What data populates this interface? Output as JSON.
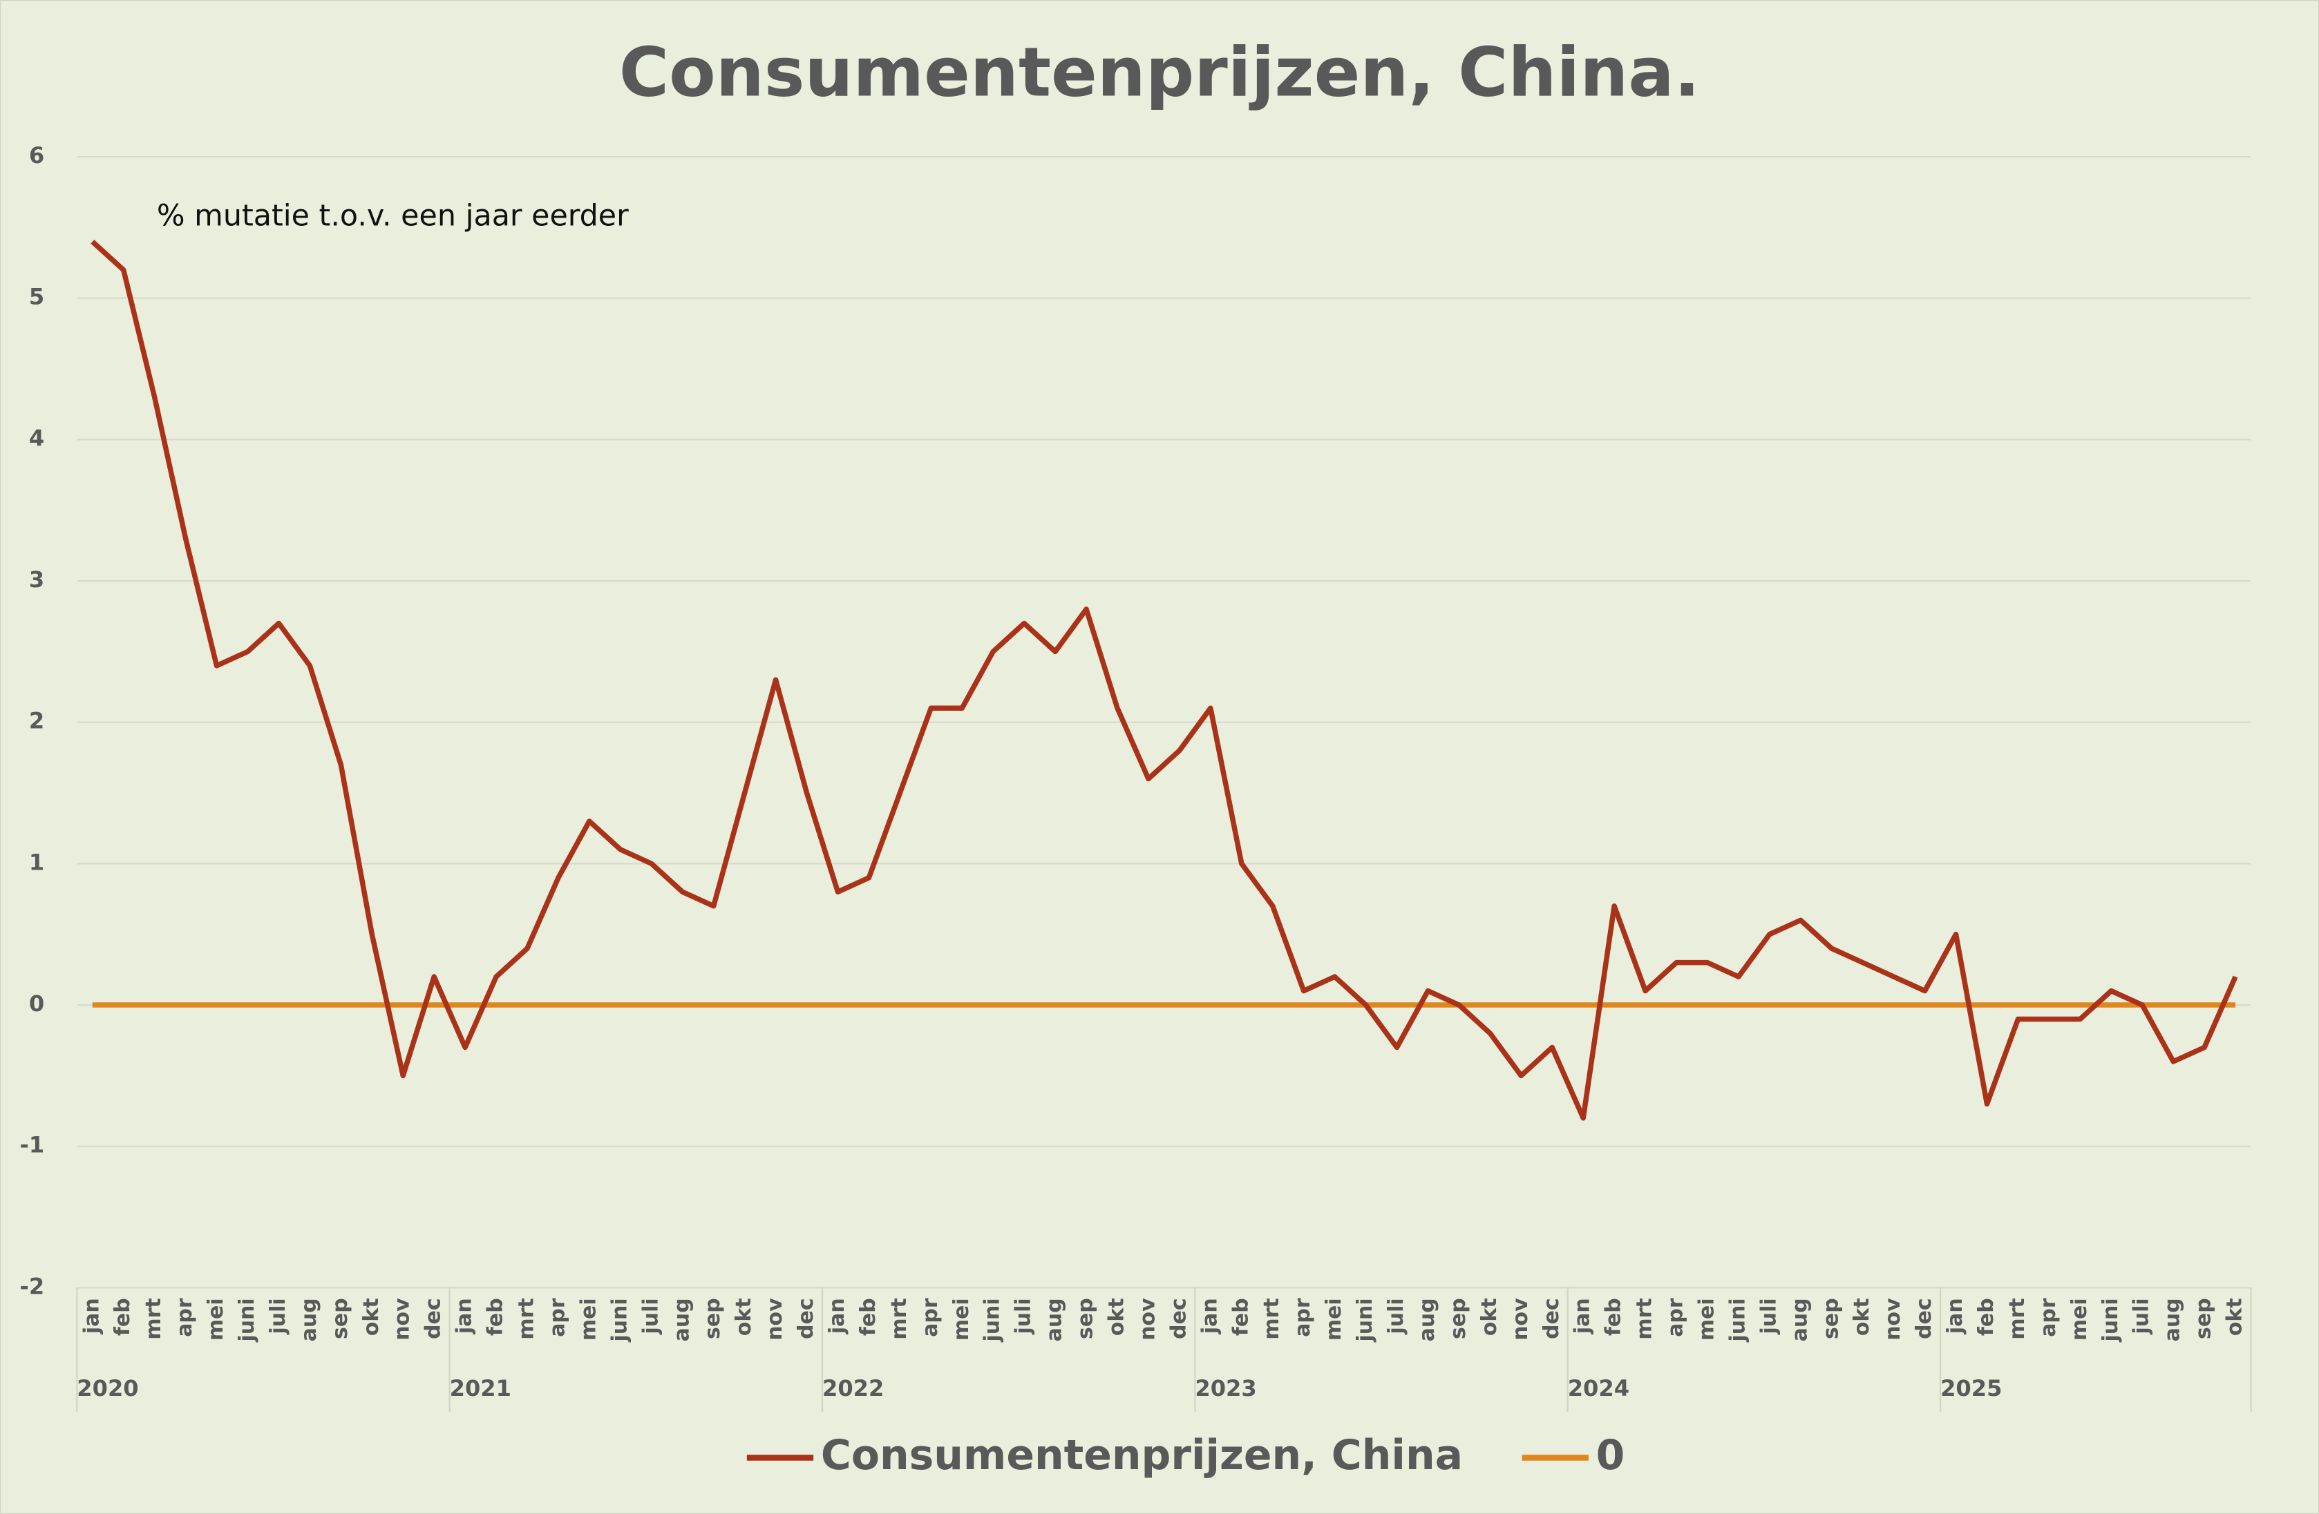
{
  "chart_data": {
    "type": "line",
    "title": "Consumentenprijzen,  China.",
    "annotation": "% mutatie t.o.v. een jaar eerder",
    "categories": [
      "jan",
      "feb",
      "mrt",
      "apr",
      "mei",
      "juni",
      "juli",
      "aug",
      "sep",
      "okt",
      "nov",
      "dec",
      "jan",
      "feb",
      "mrt",
      "apr",
      "mei",
      "juni",
      "juli",
      "aug",
      "sep",
      "okt",
      "nov",
      "dec",
      "jan",
      "feb",
      "mrt",
      "apr",
      "mei",
      "juni",
      "juli",
      "aug",
      "sep",
      "okt",
      "nov",
      "dec",
      "jan",
      "feb",
      "mrt",
      "apr",
      "mei",
      "juni",
      "juli",
      "aug",
      "sep",
      "okt",
      "nov",
      "dec",
      "jan",
      "feb",
      "mrt",
      "apr",
      "mei",
      "juni",
      "juli",
      "aug",
      "sep",
      "okt",
      "nov",
      "dec",
      "jan",
      "feb",
      "mrt",
      "apr",
      "mei",
      "juni",
      "juli",
      "aug",
      "sep",
      "okt"
    ],
    "years": [
      "2020",
      "2021",
      "2022",
      "2023",
      "2024",
      "2025"
    ],
    "series": [
      {
        "name": "Consumentenprijzen,  China",
        "color": "#a93218",
        "values": [
          5.4,
          5.2,
          4.3,
          3.3,
          2.4,
          2.5,
          2.7,
          2.4,
          1.7,
          0.5,
          -0.5,
          0.2,
          -0.3,
          0.2,
          0.4,
          0.9,
          1.3,
          1.1,
          1.0,
          0.8,
          0.7,
          1.5,
          2.3,
          1.5,
          0.8,
          0.9,
          1.5,
          2.1,
          2.1,
          2.5,
          2.7,
          2.5,
          2.8,
          2.1,
          1.6,
          1.8,
          2.1,
          1.0,
          0.7,
          0.1,
          0.2,
          0.0,
          -0.3,
          0.1,
          0.0,
          -0.2,
          -0.5,
          -0.3,
          -0.8,
          0.7,
          0.1,
          0.3,
          0.3,
          0.2,
          0.5,
          0.6,
          0.4,
          0.3,
          0.2,
          0.1,
          0.5,
          -0.7,
          -0.1,
          -0.1,
          -0.1,
          0.1,
          0.0,
          -0.4,
          -0.3,
          0.2
        ]
      },
      {
        "name": "0",
        "color": "#e0861f",
        "values": [
          0,
          0,
          0,
          0,
          0,
          0,
          0,
          0,
          0,
          0,
          0,
          0,
          0,
          0,
          0,
          0,
          0,
          0,
          0,
          0,
          0,
          0,
          0,
          0,
          0,
          0,
          0,
          0,
          0,
          0,
          0,
          0,
          0,
          0,
          0,
          0,
          0,
          0,
          0,
          0,
          0,
          0,
          0,
          0,
          0,
          0,
          0,
          0,
          0,
          0,
          0,
          0,
          0,
          0,
          0,
          0,
          0,
          0,
          0,
          0,
          0,
          0,
          0,
          0,
          0,
          0,
          0,
          0,
          0,
          0
        ]
      }
    ],
    "ylim": [
      -2,
      6
    ],
    "yticks": [
      -2,
      -1,
      0,
      1,
      2,
      3,
      4,
      5,
      6
    ],
    "grid": true,
    "legend": "bottom"
  }
}
